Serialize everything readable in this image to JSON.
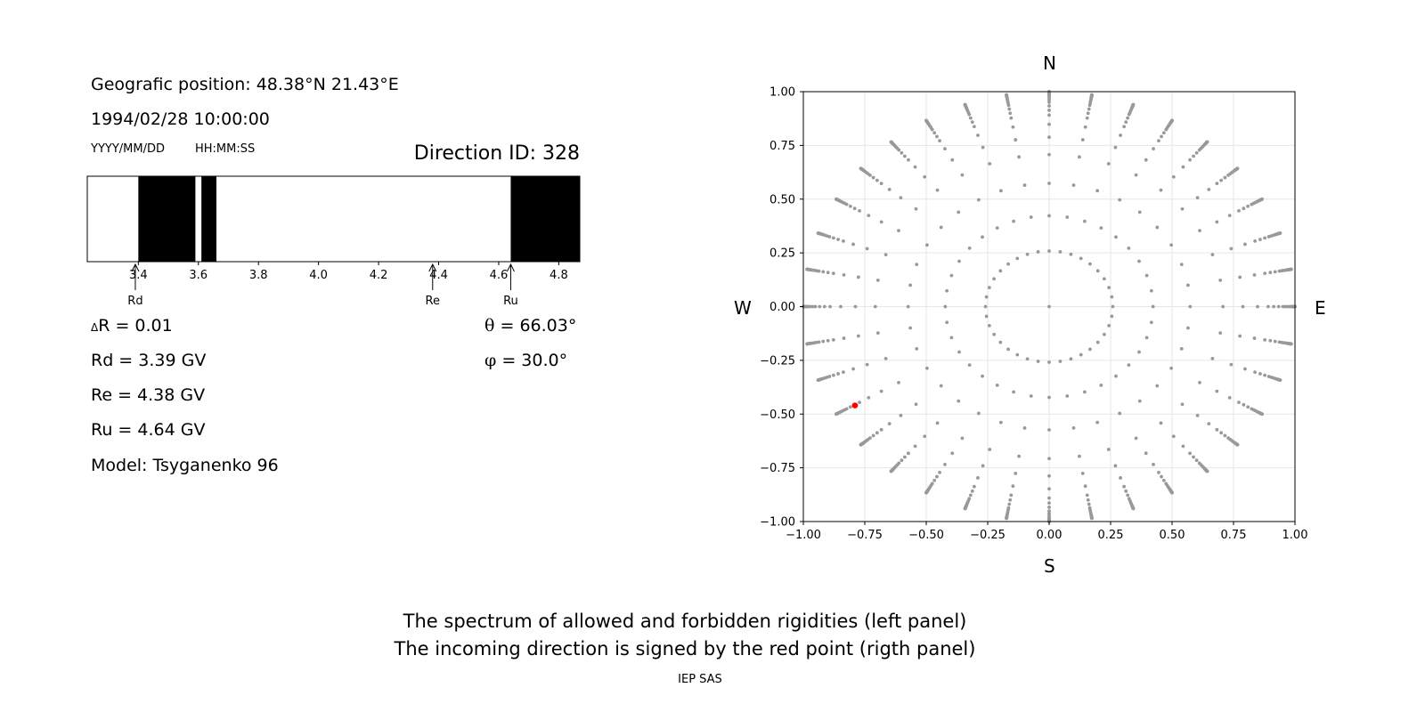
{
  "left_panel": {
    "position_text": "Geografic position: 48.38°N 21.43°E",
    "datetime_text": "1994/02/28 10:00:00",
    "date_format": "YYYY/MM/DD",
    "time_format": "HH:MM:SS",
    "direction_id": "Direction ID: 328",
    "delta_r_symbol": "Δ",
    "delta_r": "R = 0.01",
    "rd": "Rd = 3.39 GV",
    "re": "Re = 4.38 GV",
    "ru": "Ru = 4.64 GV",
    "model": "Model: Tsyganenko 96",
    "theta_symbol": "θ",
    "theta": " = 66.03°",
    "phi_symbol": "φ",
    "phi": " = 30.0°"
  },
  "footer": {
    "line1": "The spectrum of allowed and forbidden rigidities (left panel)",
    "line2": "The incoming direction is signed by the red point (rigth panel)",
    "credit": "IEP SAS"
  },
  "colors": {
    "forbidden": "#000000",
    "allowed": "#ffffff",
    "grid_points": "#999999",
    "selected_point": "#ff0000",
    "gridlines": "#e6e6e6"
  },
  "chart_data": [
    {
      "type": "bar",
      "xlim": [
        3.23,
        4.87
      ],
      "xticks": [
        3.4,
        3.6,
        3.8,
        4.0,
        4.2,
        4.4,
        4.6,
        4.8
      ],
      "tick_labels": [
        "3.4",
        "3.6",
        "3.8",
        "4.0",
        "4.2",
        "4.4",
        "4.6",
        "4.8"
      ],
      "forbidden_intervals": [
        [
          3.4,
          3.59
        ],
        [
          3.61,
          3.66
        ],
        [
          4.64,
          4.87
        ]
      ],
      "markers": [
        {
          "label": "Rd",
          "value": 3.39
        },
        {
          "label": "Re",
          "value": 4.38
        },
        {
          "label": "Ru",
          "value": 4.64
        }
      ]
    },
    {
      "type": "scatter",
      "xlim": [
        -1.0,
        1.0
      ],
      "ylim": [
        -1.0,
        1.0
      ],
      "grid": true,
      "xticks": [
        -1.0,
        -0.75,
        -0.5,
        -0.25,
        0.0,
        0.25,
        0.5,
        0.75,
        1.0
      ],
      "yticks": [
        1.0,
        0.75,
        0.5,
        0.25,
        0.0,
        -0.25,
        -0.5,
        -0.75,
        -1.0
      ],
      "xtick_labels": [
        "−1.00",
        "−0.75",
        "−0.50",
        "−0.25",
        "0.00",
        "0.25",
        "0.50",
        "0.75",
        "1.00"
      ],
      "ytick_labels": [
        "1.00",
        "0.75",
        "0.50",
        "0.25",
        "0.00",
        "−0.25",
        "−0.50",
        "−0.75",
        "−1.00"
      ],
      "directions": {
        "north": "N",
        "south": "S",
        "west": "W",
        "east": "E"
      },
      "grid_points": {
        "azimuth_step_deg": 10,
        "theta_values_deg": [
          0,
          15,
          25,
          35,
          45,
          52,
          58,
          63,
          66,
          69,
          72,
          74,
          76,
          78,
          80,
          81,
          82,
          83,
          84,
          85,
          86,
          87,
          88,
          89,
          90
        ]
      },
      "selected_point": {
        "x": -0.79,
        "y": -0.46,
        "theta_deg": 66.03,
        "phi_deg": 30.0
      }
    }
  ]
}
